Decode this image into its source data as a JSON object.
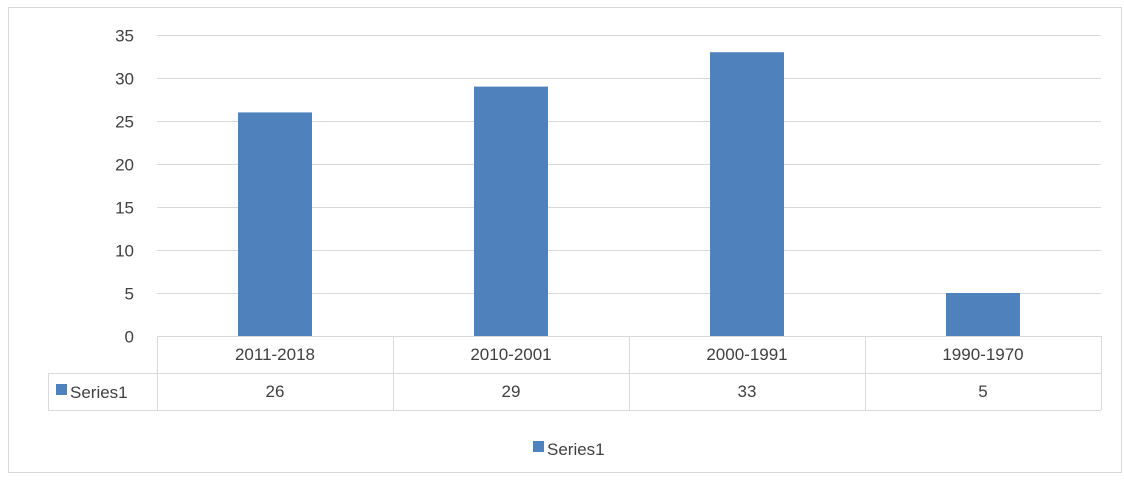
{
  "chart_data": {
    "type": "bar",
    "categories": [
      "2011-2018",
      "2010-2001",
      "2000-1991",
      "1990-1970"
    ],
    "series": [
      {
        "name": "Series1",
        "values": [
          26,
          29,
          33,
          5
        ]
      }
    ],
    "ylim": [
      0,
      35
    ],
    "yticks": [
      0,
      5,
      10,
      15,
      20,
      25,
      30,
      35
    ],
    "grid": true,
    "legend": "bottom",
    "data_table": true,
    "colors": {
      "bar": "#4f81bd",
      "grid": "#d9d9d9",
      "text": "#404040",
      "border": "#d9d9d9"
    }
  }
}
